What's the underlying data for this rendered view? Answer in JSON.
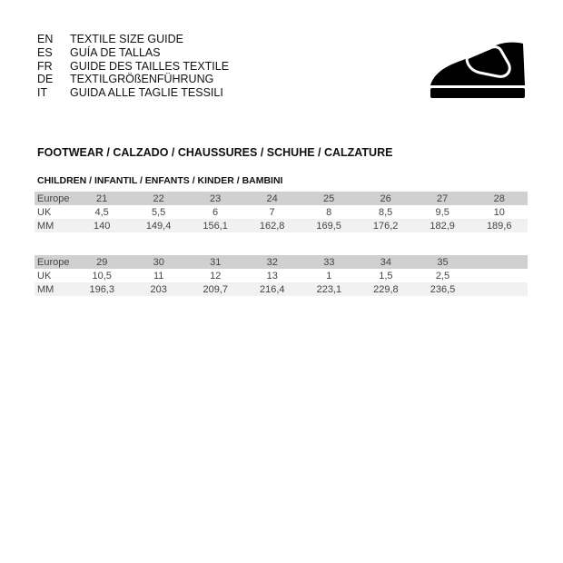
{
  "guide": [
    {
      "code": "EN",
      "title": "TEXTILE SIZE GUIDE"
    },
    {
      "code": "ES",
      "title": "GUÍA DE TALLAS"
    },
    {
      "code": "FR",
      "title": "GUIDE DES TAILLES TEXTILE"
    },
    {
      "code": "DE",
      "title": "TEXTILGRÖßENFÜHRUNG"
    },
    {
      "code": "IT",
      "title": "GUIDA ALLE TAGLIE TESSILI"
    }
  ],
  "icon": "shoe-icon",
  "section_title": "FOOTWEAR / CALZADO / CHAUSSURES / SCHUHE / CALZATURE",
  "subsection_title": "CHILDREN / INFANTIL / ENFANTS / KINDER / BAMBINI",
  "tables": [
    {
      "rows": [
        {
          "label": "Europe",
          "values": [
            "21",
            "22",
            "23",
            "24",
            "25",
            "26",
            "27",
            "28"
          ]
        },
        {
          "label": "UK",
          "values": [
            "4,5",
            "5,5",
            "6",
            "7",
            "8",
            "8,5",
            "9,5",
            "10"
          ]
        },
        {
          "label": "MM",
          "values": [
            "140",
            "149,4",
            "156,1",
            "162,8",
            "169,5",
            "176,2",
            "182,9",
            "189,6"
          ]
        }
      ]
    },
    {
      "rows": [
        {
          "label": "Europe",
          "values": [
            "29",
            "30",
            "31",
            "32",
            "33",
            "34",
            "35",
            ""
          ]
        },
        {
          "label": "UK",
          "values": [
            "10,5",
            "11",
            "12",
            "13",
            "1",
            "1,5",
            "2,5",
            ""
          ]
        },
        {
          "label": "MM",
          "values": [
            "196,3",
            "203",
            "209,7",
            "216,4",
            "223,1",
            "229,8",
            "236,5",
            ""
          ]
        }
      ]
    }
  ]
}
